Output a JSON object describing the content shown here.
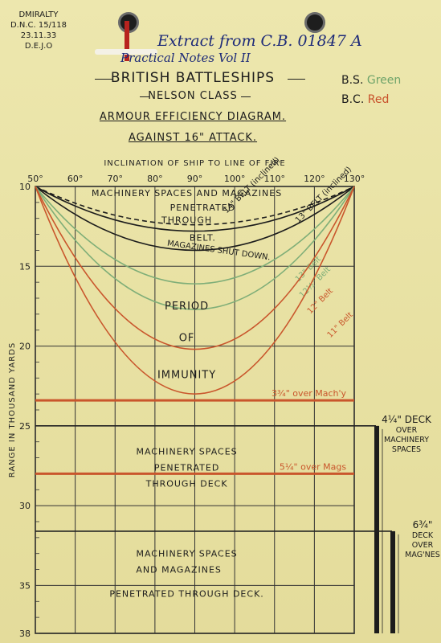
{
  "reference": {
    "lines": [
      "DMIRALTY",
      "D.N.C. 15/118",
      "23.11.33",
      "D.E.J.O"
    ]
  },
  "handwritten": {
    "line1": "Extract from C.B. 01847 A",
    "line2": "Practical Notes Vol II"
  },
  "titles": {
    "main": "BRITISH BATTLESHIPS",
    "class": "NELSON CLASS",
    "diagram": "ARMOUR EFFICIENCY DIAGRAM.",
    "attack": "AGAINST 16\" ATTACK."
  },
  "legend": [
    {
      "label": "B.S.",
      "value": "Green",
      "color": "#6fa46a"
    },
    {
      "label": "B.C.",
      "value": "Red",
      "color": "#c8502a"
    }
  ],
  "colors": {
    "green": "#7fae78",
    "red": "#c9562c",
    "black": "#1c1c1c"
  },
  "chart_data": {
    "type": "line",
    "xlabel": "INCLINATION OF SHIP TO LINE OF FIRE",
    "ylabel": "RANGE IN THOUSAND YARDS",
    "x_ticks": [
      50,
      60,
      70,
      80,
      90,
      100,
      110,
      120,
      130
    ],
    "y_ticks": [
      10,
      15,
      20,
      25,
      30,
      35,
      38
    ],
    "xlim": [
      50,
      130
    ],
    "ylim": [
      10,
      38
    ],
    "curves": [
      {
        "name": "14\" BELT (inclined)",
        "color": "black",
        "dashed": false,
        "min_range": 14.0,
        "label_x": 98,
        "label_y": 11.7
      },
      {
        "name": "13\" BELT (inclined)",
        "color": "black",
        "dashed": false,
        "min_range": 12.8,
        "label_x": 116,
        "label_y": 12.3
      },
      {
        "name": "MAGAZINES SHUT DOWN.",
        "color": "black",
        "dashed": true,
        "min_range": 12.4,
        "label_x": 83,
        "label_y": 13.7
      },
      {
        "name": "13\" Belt",
        "color": "green",
        "dashed": false,
        "min_range": 16.1,
        "label_x": 116,
        "label_y": 16.0
      },
      {
        "name": "12½\" Belt",
        "color": "green",
        "dashed": false,
        "min_range": 17.7,
        "label_x": 117,
        "label_y": 17.0
      },
      {
        "name": "12\" Belt",
        "color": "red",
        "dashed": false,
        "min_range": 20.2,
        "label_x": 119,
        "label_y": 18.0
      },
      {
        "name": "11\" Belt",
        "color": "red",
        "dashed": false,
        "min_range": 23.0,
        "label_x": 124,
        "label_y": 19.5
      }
    ],
    "horizontal_lines": [
      {
        "name": "3¾\" over Mach'y",
        "range": 23.4,
        "color": "red"
      },
      {
        "name": "5¼\" over Mags",
        "range": 28.0,
        "color": "red"
      }
    ],
    "deck_labels": [
      {
        "text": "4¼\" DECK OVER MACHINERY SPACES",
        "range": 25
      },
      {
        "text": "6¾\" DECK OVER MAG'NES",
        "range": 31.6
      }
    ],
    "zone_text": [
      {
        "text": "MACHINERY SPACES AND MAGAZINES",
        "x": 88,
        "y": 10.6
      },
      {
        "text": "PENETRATED",
        "x": 92,
        "y": 11.5
      },
      {
        "text": "THROUGH",
        "x": 88,
        "y": 12.3
      },
      {
        "text": "BELT.",
        "x": 92,
        "y": 13.4
      },
      {
        "text": "PERIOD",
        "x": 88,
        "y": 17.7
      },
      {
        "text": "OF",
        "x": 88,
        "y": 19.7
      },
      {
        "text": "IMMUNITY",
        "x": 88,
        "y": 22.0
      },
      {
        "text": "MACHINERY SPACES",
        "x": 88,
        "y": 26.8
      },
      {
        "text": "PENETRATED",
        "x": 88,
        "y": 27.8
      },
      {
        "text": "THROUGH DECK",
        "x": 88,
        "y": 28.8
      },
      {
        "text": "MACHINERY SPACES",
        "x": 88,
        "y": 33.2
      },
      {
        "text": "AND MAGAZINES",
        "x": 86,
        "y": 34.2
      },
      {
        "text": "PENETRATED THROUGH DECK.",
        "x": 88,
        "y": 35.7
      }
    ]
  }
}
